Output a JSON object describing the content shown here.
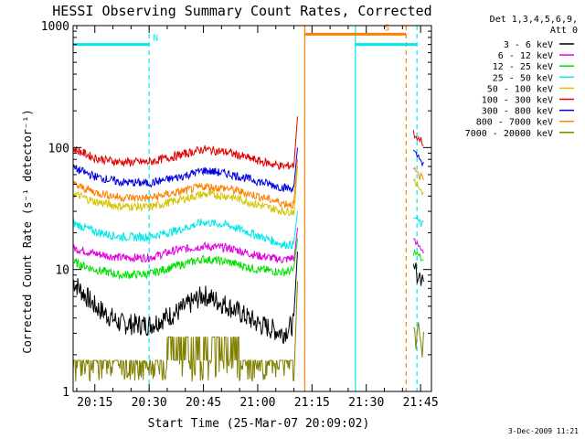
{
  "chart_data": {
    "type": "line",
    "title": "HESSI Observing Summary Count Rates, Corrected",
    "xlabel": "Start Time (25-Mar-07 20:09:02)",
    "ylabel": "Corrected Count Rate (s⁻¹ detector⁻¹)",
    "yscale": "log",
    "ylim": [
      1,
      1000
    ],
    "xlim": [
      "20:09",
      "21:48"
    ],
    "x_ticks": [
      "20:15",
      "20:30",
      "20:45",
      "21:00",
      "21:15",
      "21:30",
      "21:45"
    ],
    "y_ticks": [
      "1",
      "10",
      "100",
      "1000"
    ],
    "legend": {
      "header": [
        "Det 1,3,4,5,6,9,",
        "Att 0"
      ],
      "position": "right"
    },
    "series": [
      {
        "name": "3 - 6 keV",
        "color": "#000000",
        "x": [
          "20:09",
          "20:15",
          "20:22",
          "20:30",
          "20:38",
          "20:45",
          "20:52",
          "21:00",
          "21:07",
          "21:10",
          "21:11"
        ],
        "y": [
          8,
          5,
          3.6,
          3.5,
          4.5,
          6.2,
          5,
          3.6,
          3,
          3.6,
          14
        ]
      },
      {
        "name": "6 - 12 keV",
        "color": "#e000e0",
        "x": [
          "20:09",
          "20:15",
          "20:22",
          "20:30",
          "20:38",
          "20:45",
          "20:52",
          "21:00",
          "21:07",
          "21:10",
          "21:11"
        ],
        "y": [
          15,
          13.5,
          12.5,
          12.5,
          14.5,
          15.5,
          15,
          13,
          12,
          12.5,
          22
        ]
      },
      {
        "name": "12 - 25 keV",
        "color": "#00e000",
        "x": [
          "20:09",
          "20:15",
          "20:22",
          "20:30",
          "20:38",
          "20:45",
          "20:52",
          "21:00",
          "21:07",
          "21:10",
          "21:11"
        ],
        "y": [
          11.5,
          10,
          9,
          9.2,
          10.8,
          12.2,
          11.5,
          10,
          9.5,
          9.8,
          18
        ]
      },
      {
        "name": "25 - 50 keV",
        "color": "#00e8e8",
        "x": [
          "20:09",
          "20:15",
          "20:22",
          "20:30",
          "20:38",
          "20:45",
          "20:52",
          "21:00",
          "21:07",
          "21:10",
          "21:11"
        ],
        "y": [
          24,
          20.5,
          18.5,
          18.5,
          21,
          24.5,
          23,
          19,
          16,
          16,
          30
        ]
      },
      {
        "name": "50 - 100 keV",
        "color": "#d4c400",
        "x": [
          "20:09",
          "20:15",
          "20:22",
          "20:30",
          "20:38",
          "20:45",
          "20:52",
          "21:00",
          "21:07",
          "21:10",
          "21:11"
        ],
        "y": [
          42,
          36,
          33,
          32.5,
          37,
          41.5,
          40,
          34,
          30,
          30,
          70
        ]
      },
      {
        "name": "100 - 300 keV",
        "color": "#e00000",
        "x": [
          "20:09",
          "20:15",
          "20:22",
          "20:30",
          "20:38",
          "20:45",
          "20:52",
          "21:00",
          "21:07",
          "21:10",
          "21:11"
        ],
        "y": [
          98,
          82,
          76,
          76,
          86,
          97,
          91,
          78,
          70,
          72,
          180
        ]
      },
      {
        "name": "300 - 800 keV",
        "color": "#0000e0",
        "x": [
          "20:09",
          "20:15",
          "20:22",
          "20:30",
          "20:38",
          "20:45",
          "20:52",
          "21:00",
          "21:07",
          "21:10",
          "21:11"
        ],
        "y": [
          68,
          58,
          52,
          51,
          57,
          65,
          61,
          53,
          47,
          46,
          100
        ]
      },
      {
        "name": "800 - 7000 keV",
        "color": "#ff8000",
        "x": [
          "20:09",
          "20:15",
          "20:22",
          "20:30",
          "20:38",
          "20:45",
          "20:52",
          "21:00",
          "21:07",
          "21:10",
          "21:11"
        ],
        "y": [
          50,
          43,
          39,
          38.5,
          43,
          48,
          46,
          40,
          35,
          34,
          80
        ]
      },
      {
        "name": "7000 - 20000 keV",
        "color": "#808000",
        "x": [
          "20:09",
          "20:15",
          "20:22",
          "20:30",
          "20:38",
          "20:45",
          "20:52",
          "21:00",
          "21:07",
          "21:10",
          "21:11"
        ],
        "y": [
          2.5,
          1.8,
          1.8,
          1.8,
          1.8,
          2.5,
          2.5,
          1.8,
          1.8,
          1.8,
          8
        ]
      }
    ],
    "late_segment": {
      "x": "21:43",
      "values": {
        "3 - 6 keV": 10,
        "6 - 12 keV": 17,
        "12 - 25 keV": 14,
        "25 - 50 keV": 27,
        "50 - 100 keV": 52,
        "100 - 300 keV": 130,
        "300 - 800 keV": 90,
        "800 - 7000 keV": 65,
        "7000 - 20000 keV": 3
      }
    },
    "flags": [
      {
        "label": "N",
        "start": "20:09",
        "end": "20:30",
        "color": "#00e8e8",
        "level": 700
      },
      {
        "label": "S",
        "start": "21:13",
        "end": "21:41",
        "color": "#ff8000",
        "level": 850
      },
      {
        "label": "",
        "start": "21:27",
        "end": "21:44",
        "color": "#00e8e8",
        "level": 700
      }
    ],
    "vertical_markers": [
      {
        "x": "20:30",
        "color": "#00e8e8",
        "style": "dashed"
      },
      {
        "x": "21:13",
        "color": "#ff8000",
        "style": "solid"
      },
      {
        "x": "21:27",
        "color": "#00e8e8",
        "style": "solid"
      },
      {
        "x": "21:41",
        "color": "#ff8000",
        "style": "dashed"
      },
      {
        "x": "21:44",
        "color": "#00e8e8",
        "style": "dashed"
      }
    ],
    "gaps": [
      {
        "start": "21:11",
        "end": "21:41"
      }
    ]
  },
  "footer": {
    "date": "3-Dec-2009 11:21"
  }
}
